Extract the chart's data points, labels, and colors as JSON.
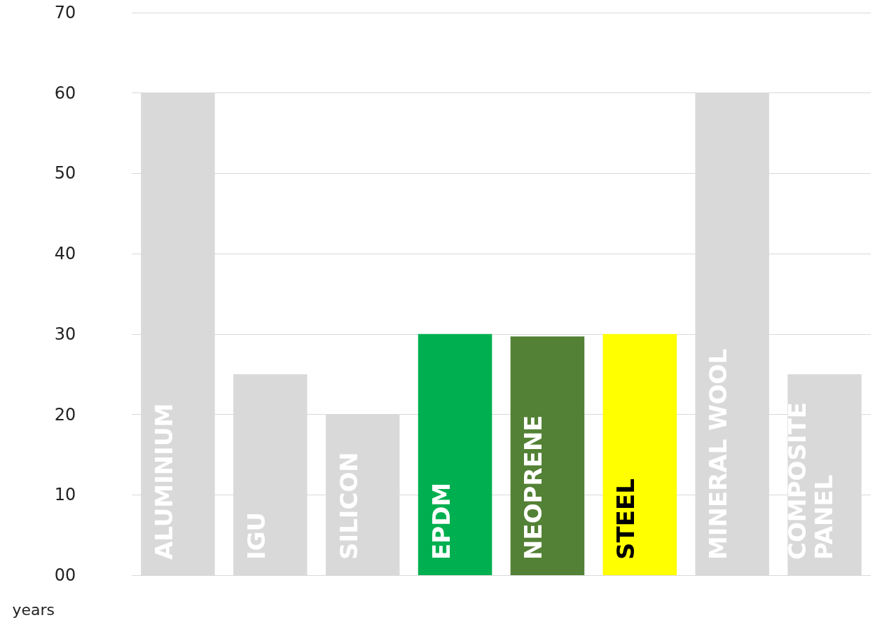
{
  "chart_data": {
    "type": "bar",
    "ylabel": "years",
    "categories": [
      "ALUMINIUM",
      "IGU",
      "SILICON",
      "EPDM",
      "NEOPRENE",
      "STEEL",
      "MINERAL WOOL",
      "COMPOSITE PANEL"
    ],
    "values": [
      60,
      25,
      20,
      30,
      29.7,
      30,
      60,
      25
    ],
    "colors": [
      "#d9d9d9",
      "#d9d9d9",
      "#d9d9d9",
      "#00b050",
      "#538135",
      "#ffff00",
      "#d9d9d9",
      "#d9d9d9"
    ],
    "ylim": [
      0,
      70
    ],
    "yticks": [
      {
        "value": 0,
        "label": "00"
      },
      10,
      20,
      30,
      40,
      50,
      60,
      70
    ],
    "grid": "y",
    "tick_labels": "y"
  }
}
